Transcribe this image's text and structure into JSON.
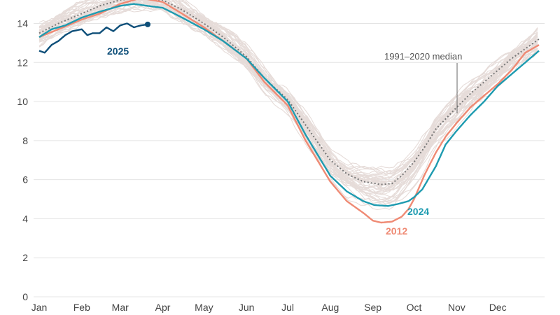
{
  "chart_data": {
    "type": "line",
    "ylim": [
      0,
      15.2
    ],
    "xlim": [
      1,
      365
    ],
    "yticks": [
      0,
      2,
      4,
      6,
      8,
      10,
      12,
      14
    ],
    "months": [
      {
        "label": "Jan",
        "day": 1
      },
      {
        "label": "Feb",
        "day": 32
      },
      {
        "label": "Mar",
        "day": 60
      },
      {
        "label": "Apr",
        "day": 91
      },
      {
        "label": "May",
        "day": 121
      },
      {
        "label": "Jun",
        "day": 152
      },
      {
        "label": "Jul",
        "day": 182
      },
      {
        "label": "Aug",
        "day": 213
      },
      {
        "label": "Sep",
        "day": 244
      },
      {
        "label": "Oct",
        "day": 274
      },
      {
        "label": "Nov",
        "day": 305
      },
      {
        "label": "Dec",
        "day": 335
      }
    ],
    "background_years": {
      "count": 45,
      "color": "#e6dcd9",
      "note": "individual past years shown in light grey"
    },
    "series": [
      {
        "name": "2012",
        "color": "#ef8a74",
        "style": "solid",
        "x": [
          1,
          15,
          32,
          45,
          60,
          75,
          91,
          105,
          121,
          135,
          152,
          165,
          182,
          195,
          213,
          225,
          237,
          244,
          250,
          258,
          265,
          270,
          274,
          282,
          290,
          297,
          305,
          315,
          325,
          335,
          345,
          355,
          365
        ],
        "y": [
          13.3,
          13.7,
          14.2,
          14.5,
          15.0,
          15.3,
          15.1,
          14.5,
          13.8,
          13.1,
          12.2,
          11.0,
          9.8,
          8.0,
          5.9,
          4.9,
          4.3,
          3.9,
          3.8,
          3.85,
          4.1,
          4.5,
          5.0,
          6.3,
          7.4,
          8.2,
          8.9,
          9.7,
          10.3,
          10.9,
          11.6,
          12.5,
          12.9
        ]
      },
      {
        "name": "2024",
        "color": "#1e9bb0",
        "style": "solid",
        "x": [
          1,
          10,
          20,
          32,
          45,
          60,
          70,
          80,
          91,
          105,
          121,
          135,
          152,
          165,
          182,
          195,
          213,
          225,
          237,
          245,
          255,
          262,
          270,
          274,
          280,
          290,
          297,
          305,
          315,
          325,
          335,
          345,
          355,
          365
        ],
        "y": [
          13.3,
          13.7,
          13.9,
          14.3,
          14.6,
          14.9,
          15.0,
          14.9,
          14.8,
          14.3,
          13.7,
          13.1,
          12.2,
          11.2,
          10.0,
          8.3,
          6.2,
          5.4,
          4.9,
          4.7,
          4.65,
          4.75,
          4.9,
          5.1,
          5.5,
          6.7,
          7.8,
          8.5,
          9.3,
          10.0,
          10.8,
          11.4,
          12.0,
          12.6
        ]
      },
      {
        "name": "1991–2020 median",
        "color": "#777777",
        "style": "dotted",
        "x": [
          1,
          15,
          32,
          45,
          60,
          75,
          91,
          105,
          121,
          135,
          152,
          165,
          182,
          195,
          213,
          225,
          237,
          250,
          258,
          265,
          274,
          282,
          290,
          305,
          315,
          325,
          335,
          345,
          355,
          365
        ],
        "y": [
          13.5,
          14.0,
          14.5,
          14.9,
          15.2,
          15.3,
          15.2,
          14.7,
          14.0,
          13.3,
          12.3,
          11.2,
          10.1,
          8.8,
          7.0,
          6.3,
          5.9,
          5.75,
          5.8,
          6.2,
          6.9,
          7.7,
          8.6,
          9.7,
          10.4,
          11.0,
          11.6,
          12.2,
          12.7,
          13.2
        ]
      },
      {
        "name": "2025",
        "color": "#0e4f79",
        "style": "solid",
        "x": [
          1,
          5,
          10,
          15,
          20,
          25,
          32,
          36,
          40,
          45,
          50,
          55,
          60,
          65,
          70,
          75,
          80
        ],
        "y": [
          12.6,
          12.5,
          12.9,
          13.1,
          13.4,
          13.6,
          13.7,
          13.4,
          13.5,
          13.5,
          13.8,
          13.6,
          13.9,
          14.0,
          13.8,
          13.9,
          13.95
        ]
      }
    ],
    "labels": {
      "y2025": "2025",
      "y2024": "2024",
      "y2012": "2012",
      "median": "1991–2020 median"
    }
  }
}
